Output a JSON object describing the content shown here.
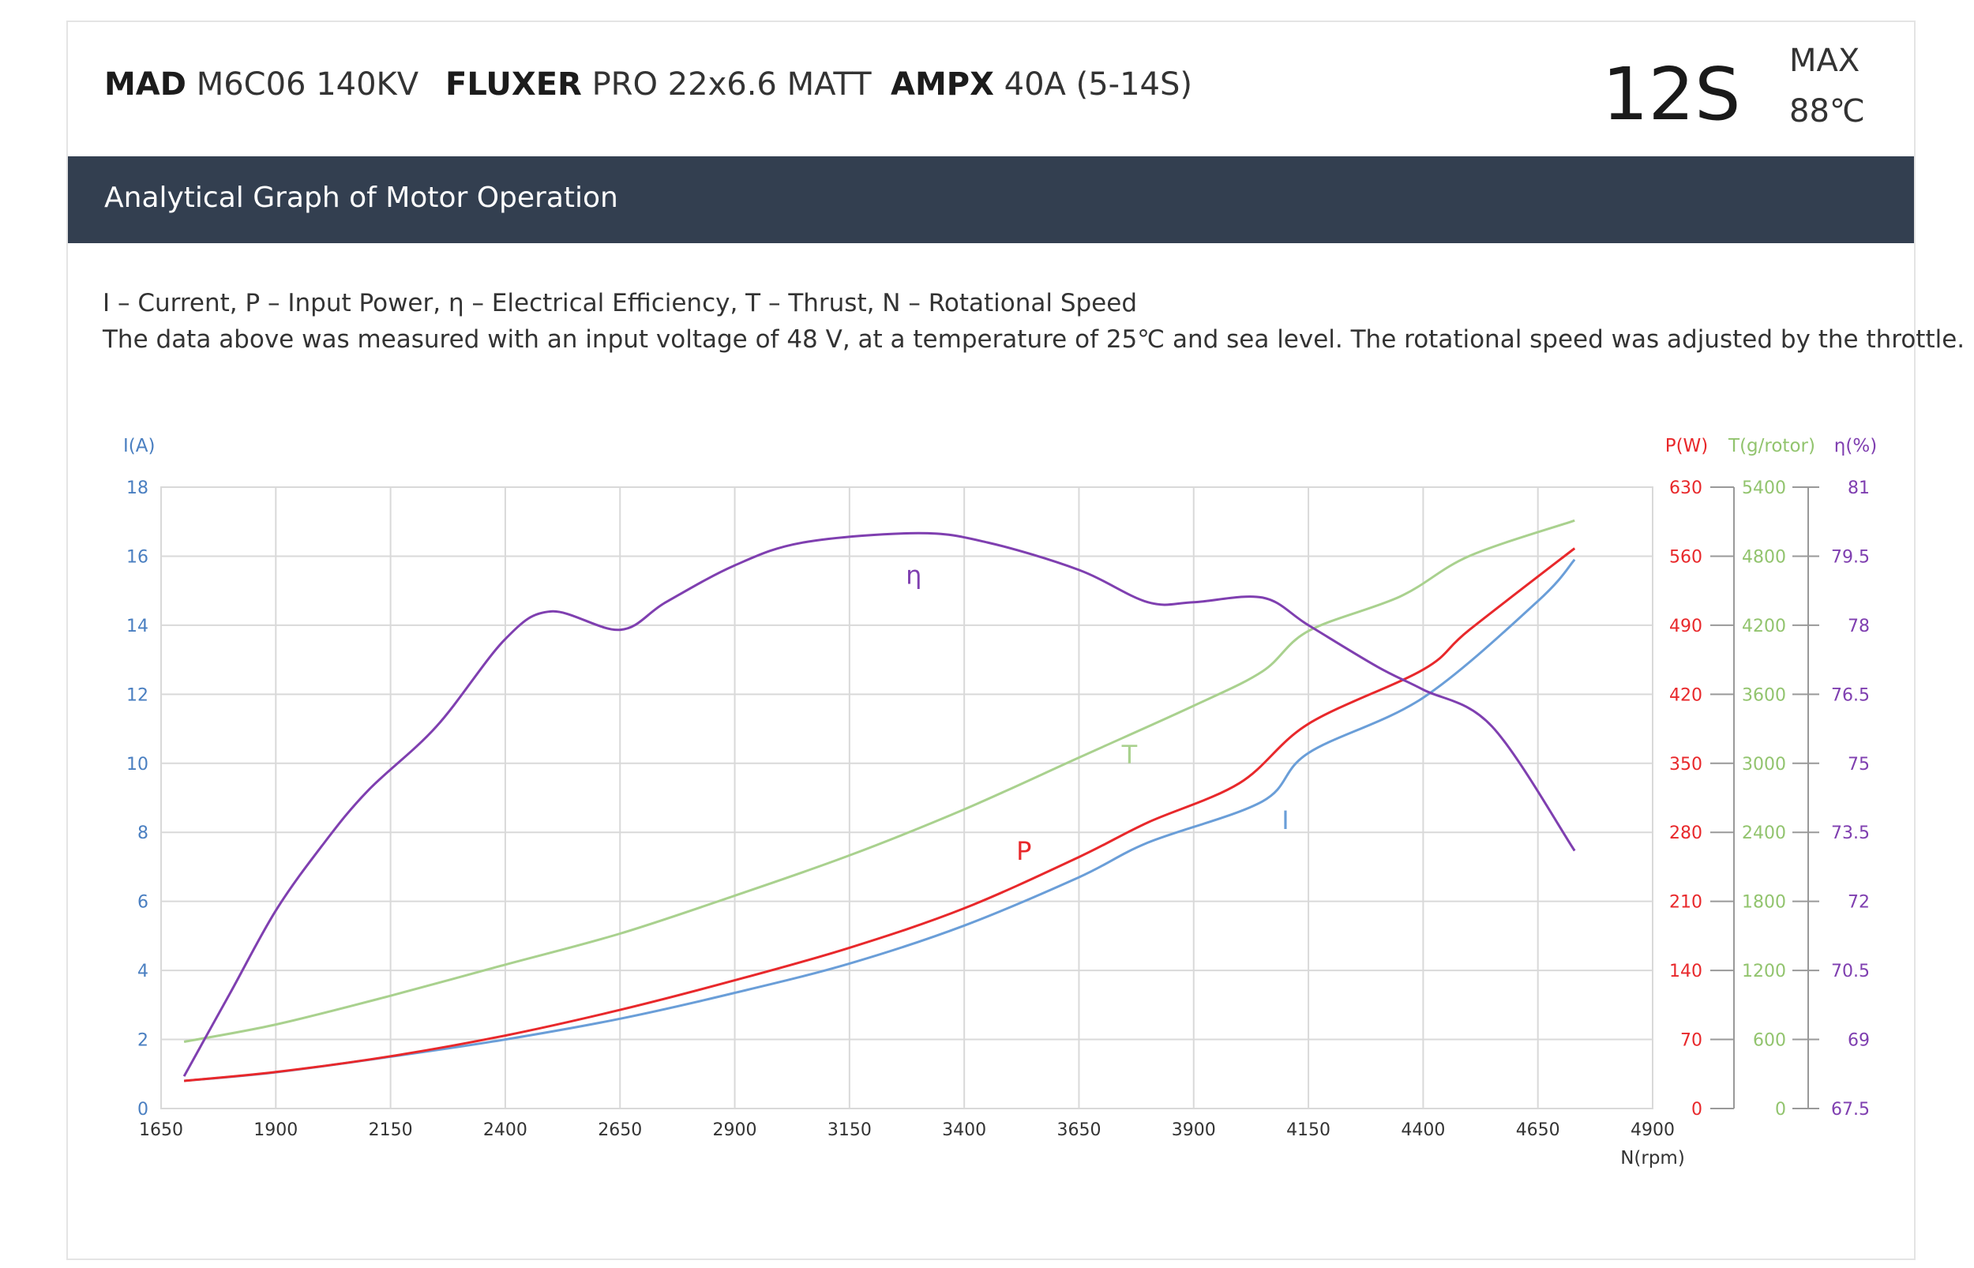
{
  "header": {
    "motor_brand": "MAD",
    "motor_model": "M6C06 140KV",
    "prop_brand": "FLUXER",
    "prop_model": "PRO 22x6.6 MATT",
    "esc_brand": "AMPX",
    "esc_model": "40A (5-14S)",
    "voltage": "12S",
    "max_label": "MAX",
    "max_temp": "88℃"
  },
  "section_title": "Analytical Graph of Motor Operation",
  "legend_text": "I – Current, P – Input Power, η – Electrical Efficiency, T – Thrust,   N – Rotational Speed",
  "note_text": "The data above was measured with an input voltage of 48 V, at a temperature of 25℃ and sea level. The rotational speed was adjusted by the throttle.",
  "colors": {
    "current": "#6a9ed8",
    "power": "#e8282b",
    "thrust": "#a9d18e",
    "efficiency": "#7f3fb0",
    "grid": "#d9d9d9",
    "axis": "#999999"
  },
  "chart_data": {
    "type": "line",
    "x_axis": {
      "label": "N(rpm)",
      "range": [
        1650,
        4900
      ],
      "ticks": [
        1650,
        1900,
        2150,
        2400,
        2650,
        2900,
        3150,
        3400,
        3650,
        3900,
        4150,
        4400,
        4650,
        4900
      ]
    },
    "y_axes": [
      {
        "label": "I(A)",
        "range": [
          0,
          18
        ],
        "ticks": [
          "0",
          "2",
          "4",
          "6",
          "8",
          "10",
          "12",
          "14",
          "16",
          "18"
        ],
        "color": "#4a7fc1"
      },
      {
        "label": "P(W)",
        "range": [
          0,
          630
        ],
        "ticks": [
          "0",
          "70",
          "140",
          "210",
          "280",
          "350",
          "420",
          "490",
          "560",
          "630"
        ],
        "color": "#e8282b"
      },
      {
        "label": "T(g/rotor)",
        "range": [
          0,
          5400
        ],
        "ticks": [
          "0",
          "600",
          "1200",
          "1800",
          "2400",
          "3000",
          "3600",
          "4200",
          "4800",
          "5400"
        ],
        "color": "#92c46e"
      },
      {
        "label": "η(%)",
        "range": [
          67.5,
          81
        ],
        "ticks": [
          "67.5",
          "69",
          "70.5",
          "72",
          "73.5",
          "75",
          "76.5",
          "78",
          "79.5",
          "81"
        ],
        "color": "#7f3fb0"
      }
    ],
    "grid": true,
    "series": [
      {
        "name": "I",
        "axis": 0,
        "color": "#6a9ed8",
        "x": [
          1700,
          1900,
          2150,
          2400,
          2650,
          2900,
          3150,
          3400,
          3650,
          3800,
          4050,
          4150,
          4400,
          4650,
          4730
        ],
        "y": [
          0.8,
          1.05,
          1.5,
          2.0,
          2.6,
          3.35,
          4.2,
          5.3,
          6.7,
          7.7,
          8.9,
          10.3,
          11.9,
          14.7,
          15.9
        ]
      },
      {
        "name": "P",
        "axis": 1,
        "color": "#e8282b",
        "x": [
          1700,
          1900,
          2150,
          2400,
          2650,
          2900,
          3150,
          3400,
          3650,
          3800,
          4000,
          4150,
          4400,
          4500,
          4730
        ],
        "y": [
          28,
          37,
          53,
          74,
          100,
          130,
          163,
          203,
          255,
          290,
          330,
          390,
          445,
          485,
          568
        ]
      },
      {
        "name": "T",
        "axis": 2,
        "color": "#a9d18e",
        "x": [
          1700,
          1900,
          2150,
          2400,
          2650,
          2900,
          3150,
          3400,
          3650,
          3900,
          4050,
          4150,
          4350,
          4500,
          4730
        ],
        "y": [
          580,
          730,
          980,
          1250,
          1520,
          1850,
          2200,
          2600,
          3050,
          3500,
          3800,
          4150,
          4450,
          4800,
          5110
        ]
      },
      {
        "name": "η",
        "axis": 3,
        "color": "#7f3fb0",
        "x": [
          1700,
          1800,
          1900,
          2000,
          2100,
          2250,
          2400,
          2500,
          2650,
          2750,
          2900,
          3050,
          3300,
          3450,
          3650,
          3800,
          3900,
          4050,
          4150,
          4300,
          4400,
          4550,
          4730
        ],
        "y": [
          68.2,
          70.0,
          71.8,
          73.2,
          74.4,
          75.8,
          77.7,
          78.3,
          77.9,
          78.5,
          79.3,
          79.8,
          80.0,
          79.8,
          79.2,
          78.5,
          78.5,
          78.6,
          78.0,
          77.1,
          76.6,
          75.8,
          73.1
        ]
      }
    ],
    "curve_labels": [
      {
        "text": "η",
        "series": "η",
        "color": "#7f3fb0",
        "at_x": 3290,
        "at_y": 15.2
      },
      {
        "text": "T",
        "series": "T",
        "color": "#a9d18e",
        "at_x": 3760,
        "at_y": 10.0
      },
      {
        "text": "I",
        "series": "I",
        "color": "#6a9ed8",
        "at_x": 4100,
        "at_y": 8.1
      },
      {
        "text": "P",
        "series": "P",
        "color": "#e8282b",
        "at_x": 3530,
        "at_y": 7.2
      }
    ]
  }
}
